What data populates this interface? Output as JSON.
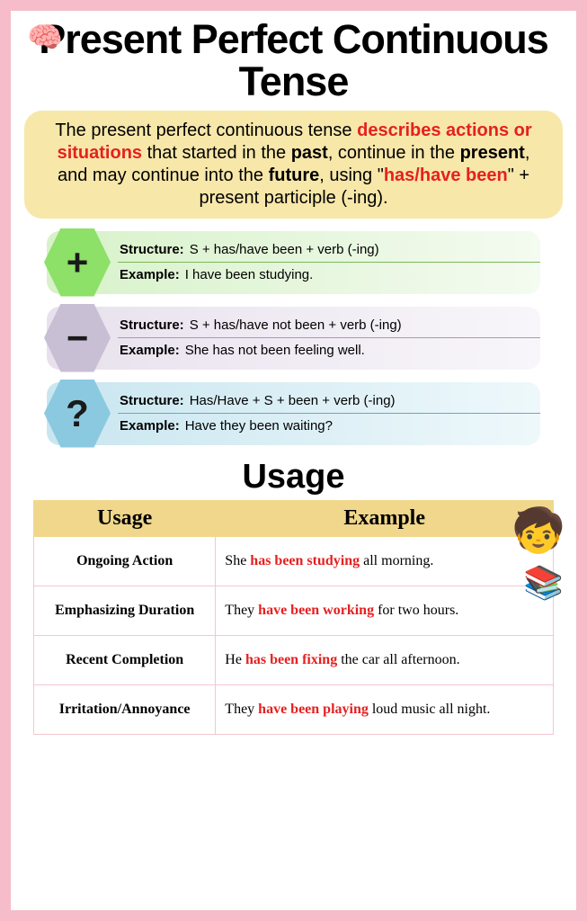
{
  "title": "Present Perfect Continuous Tense",
  "description": {
    "parts": [
      {
        "text": "The present perfect continuous tense ",
        "style": "plain"
      },
      {
        "text": "describes actions or situations",
        "style": "red"
      },
      {
        "text": " that started in the ",
        "style": "plain"
      },
      {
        "text": "past",
        "style": "bold"
      },
      {
        "text": ", continue in the ",
        "style": "plain"
      },
      {
        "text": "present",
        "style": "bold"
      },
      {
        "text": ", and may continue into the ",
        "style": "plain"
      },
      {
        "text": "future",
        "style": "bold"
      },
      {
        "text": ", using \"",
        "style": "plain"
      },
      {
        "text": "has/have been",
        "style": "red"
      },
      {
        "text": "\" + present participle (-ing).",
        "style": "plain"
      }
    ]
  },
  "structures": [
    {
      "symbol": "+",
      "hex_color": "#8de068",
      "bg_left": "#d7f2c9",
      "bg_right": "#f4fbf0",
      "divider": "#7cb85a",
      "structure_label": "Structure:",
      "structure_text": "S + has/have been + verb (-ing)",
      "example_label": "Example:",
      "example_text": "I have been studying."
    },
    {
      "symbol": "−",
      "hex_color": "#c9bfd4",
      "bg_left": "#e8e1ed",
      "bg_right": "#f8f6fa",
      "divider": "#a799b5",
      "structure_label": "Structure:",
      "structure_text": "S + has/have not been + verb (-ing)",
      "example_label": "Example:",
      "example_text": "She has not been feeling well."
    },
    {
      "symbol": "?",
      "hex_color": "#8bc9e0",
      "bg_left": "#c9e6f0",
      "bg_right": "#eef8fb",
      "divider": "#6aa8bf",
      "structure_label": "Structure:",
      "structure_text": "Has/Have + S + been + verb (-ing)",
      "example_label": "Example:",
      "example_text": "Have they been waiting?"
    }
  ],
  "usage_heading": "Usage",
  "usage_table": {
    "headers": [
      "Usage",
      "Example"
    ],
    "rows": [
      {
        "usage": "Ongoing Action",
        "pre": "She ",
        "hl": "has been studying",
        "post": " all morning."
      },
      {
        "usage": "Emphasizing Duration",
        "pre": "They ",
        "hl": "have been working",
        "post": " for two hours."
      },
      {
        "usage": "Recent Completion",
        "pre": "He ",
        "hl": "has been fixing",
        "post": " the car all afternoon."
      },
      {
        "usage": "Irritation/Annoyance",
        "pre": "They ",
        "hl": "have been playing",
        "post": " loud music all night."
      }
    ]
  },
  "icons": {
    "brain": "🧠",
    "child": "🧒",
    "books": "📚"
  }
}
